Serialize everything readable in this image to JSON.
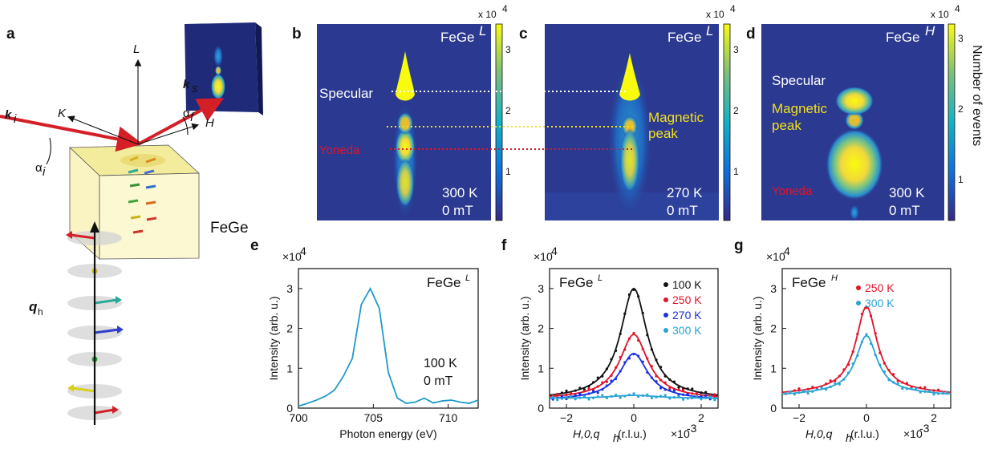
{
  "panels": {
    "a": {
      "label": "a",
      "axis_L": "L",
      "axis_K": "K",
      "axis_H": "H",
      "ki": "k",
      "ki_sub": "i",
      "ks": "k",
      "ks_sub": "s",
      "alpha_i": "α",
      "alpha_i_sub": "i",
      "alpha_f": "α",
      "alpha_f_sub": "f",
      "sample": "FeGe",
      "qh": "q",
      "qh_sub": "h"
    },
    "b": {
      "label": "b",
      "tag": "FeGe",
      "tag_sup": "L",
      "specular": "Specular",
      "yoneda": "Yoneda",
      "temp": "300 K",
      "field": "0 mT",
      "cbar_scale": "x 10",
      "cbar_exp": "4",
      "cbar_ticks": [
        "3",
        "2",
        "1"
      ]
    },
    "c": {
      "label": "c",
      "tag": "FeGe",
      "tag_sup": "L",
      "magnetic_line1": "Magnetic",
      "magnetic_line2": "peak",
      "temp": "270 K",
      "field": "0 mT",
      "cbar_scale": "x 10",
      "cbar_exp": "4",
      "cbar_ticks": [
        "3",
        "2",
        "1"
      ]
    },
    "d": {
      "label": "d",
      "tag": "FeGe",
      "tag_sup": "H",
      "specular": "Specular",
      "magnetic_line1": "Magnetic",
      "magnetic_line2": "peak",
      "yoneda": "Yoneda",
      "temp": "300 K",
      "field": "0 mT",
      "cbar_scale": "x 10",
      "cbar_exp": "4",
      "cbar_ticks": [
        "3",
        "2",
        "1"
      ],
      "cbar_label": "Number of events"
    },
    "e": {
      "label": "e",
      "tag": "FeGe",
      "tag_sup": "L",
      "temp": "100 K",
      "field": "0 mT"
    },
    "f": {
      "label": "f",
      "tag": "FeGe",
      "tag_sup": "L"
    },
    "g": {
      "label": "g",
      "tag": "FeGe",
      "tag_sup": "H"
    }
  },
  "colors": {
    "map_bg": "#2b3990",
    "curve_e": "#1f9ac9",
    "c100": "#111111",
    "c250": "#e0152a",
    "c270": "#1a2fe0",
    "c300": "#29a3d6",
    "specular_line": "#ffffff",
    "magnetic_line": "#f2e01a",
    "yoneda_line": "#e0152a"
  },
  "chart_data": [
    {
      "type": "line",
      "panel": "e",
      "xlabel": "Photon energy (eV)",
      "ylabel": "Intensity (arb. u.)",
      "yscale_label": "×10",
      "yscale_exp": "4",
      "xlim": [
        700,
        712
      ],
      "ylim": [
        0,
        3.5
      ],
      "xticks": [
        700,
        705,
        710
      ],
      "yticks": [
        0,
        1,
        2,
        3
      ],
      "series": [
        {
          "x": [
            700,
            700.6,
            701.2,
            701.8,
            702.4,
            703.0,
            703.6,
            704.2,
            704.8,
            705.4,
            706.0,
            706.6,
            707.2,
            707.8,
            708.4,
            709.0,
            709.6,
            710.2,
            710.8,
            711.4,
            712.0
          ],
          "y": [
            0.05,
            0.12,
            0.2,
            0.3,
            0.45,
            0.8,
            1.25,
            2.6,
            3.0,
            2.5,
            0.9,
            0.25,
            0.12,
            0.15,
            0.25,
            0.13,
            0.18,
            0.2,
            0.15,
            0.12,
            0.2
          ]
        }
      ]
    },
    {
      "type": "line",
      "panel": "f",
      "xlabel": "H,0,q",
      "xlabel_sub": "h",
      "xlabel_unit": " (r.l.u.)",
      "xscale_label": "×10",
      "xscale_exp": "-3",
      "ylabel": "Intensity (arb. u.)",
      "yscale_label": "×10",
      "yscale_exp": "4",
      "xlim": [
        -2.5,
        2.5
      ],
      "ylim": [
        0,
        3.5
      ],
      "xticks": [
        -2,
        0,
        2
      ],
      "yticks": [
        0,
        1,
        2,
        3
      ],
      "series": [
        {
          "name": "100 K",
          "amp": 2.72,
          "bg": 0.28,
          "width": 0.48,
          "slope": 0.02
        },
        {
          "name": "250 K",
          "amp": 1.57,
          "bg": 0.28,
          "width": 0.5,
          "slope": 0.02
        },
        {
          "name": "270 K",
          "amp": 1.12,
          "bg": 0.25,
          "width": 0.5,
          "slope": 0.02
        },
        {
          "name": "300 K",
          "amp": 0.08,
          "bg": 0.24,
          "width": 0.9,
          "slope": 0.0
        }
      ]
    },
    {
      "type": "line",
      "panel": "g",
      "xlabel": "H,0,q",
      "xlabel_sub": "h",
      "xlabel_unit": " (r.l.u.)",
      "xscale_label": "×10",
      "xscale_exp": "-3",
      "ylabel": "Intensity (arb. u.)",
      "yscale_label": "×10",
      "yscale_exp": "4",
      "xlim": [
        -2.5,
        2.5
      ],
      "ylim": [
        0,
        3.5
      ],
      "xticks": [
        -2,
        0,
        2
      ],
      "yticks": [
        0,
        1,
        2,
        3
      ],
      "series": [
        {
          "name": "250 K",
          "amp": 2.1,
          "bg": 0.45,
          "width": 0.38,
          "slope": 0.04
        },
        {
          "name": "300 K",
          "amp": 1.4,
          "bg": 0.42,
          "width": 0.38,
          "slope": 0.04
        }
      ]
    }
  ]
}
